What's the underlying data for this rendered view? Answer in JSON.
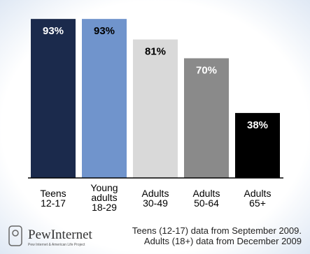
{
  "chart_data": {
    "type": "bar",
    "categories": [
      "Teens\n12-17",
      "Young\nadults\n18-29",
      "Adults\n30-49",
      "Adults\n50-64",
      "Adults\n65+"
    ],
    "values": [
      93,
      93,
      81,
      70,
      38
    ],
    "value_labels": [
      "93%",
      "93%",
      "81%",
      "70%",
      "38%"
    ],
    "colors": [
      "#1b2a4c",
      "#7094cc",
      "#d9d9d9",
      "#8a8a8a",
      "#000000"
    ],
    "label_colors": [
      "#ffffff",
      "#000000",
      "#000000",
      "#ffffff",
      "#ffffff"
    ],
    "ylim": [
      0,
      100
    ]
  },
  "footer": {
    "logo": "PewInternet",
    "logo_sub": "Pew Internet & American Life Project",
    "notes": [
      "Teens (12-17) data from September 2009.",
      "Adults (18+) data from December 2009"
    ]
  }
}
